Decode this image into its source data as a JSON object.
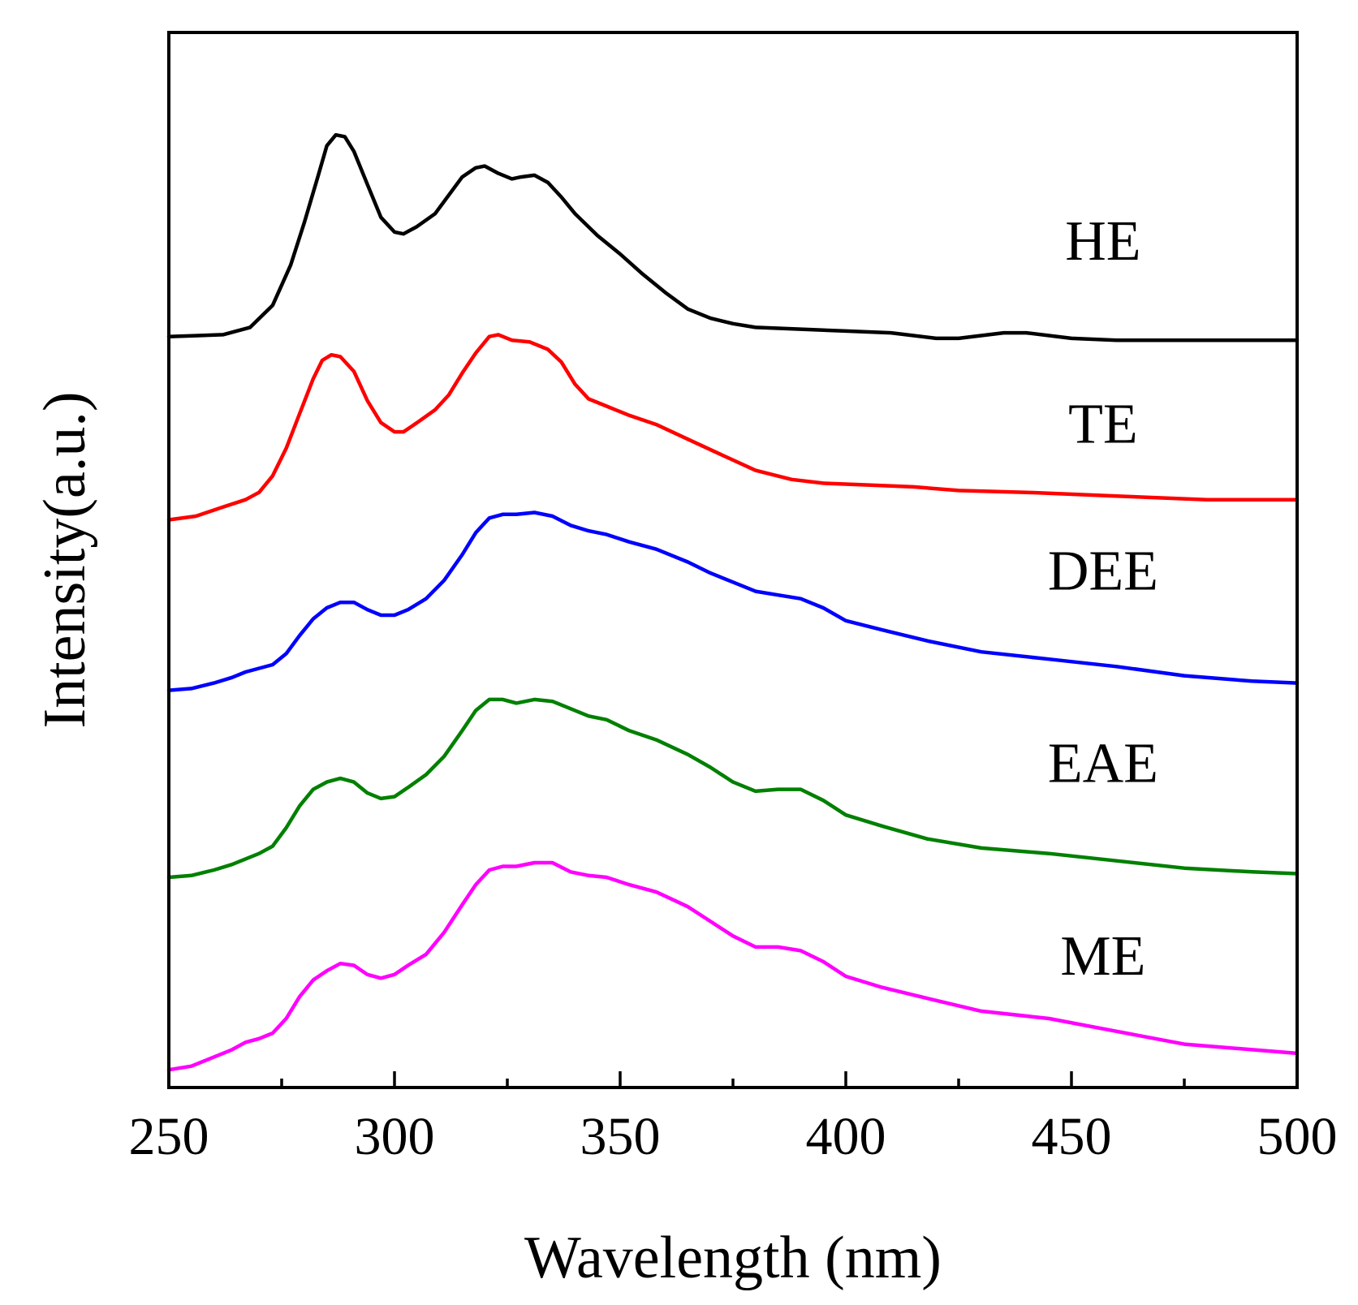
{
  "chart_data": {
    "type": "line",
    "title": "",
    "xlabel": "Wavelength (nm)",
    "ylabel": "Intensity(a.u.)",
    "xlim": [
      250,
      500
    ],
    "ylim": [
      0,
      5.6
    ],
    "y_ticks_shown": false,
    "x_ticks": [
      250,
      300,
      350,
      400,
      450,
      500
    ],
    "x_minor_ticks": [
      275,
      325,
      375,
      425,
      475
    ],
    "grid": false,
    "legend": "inline labels at right",
    "series": [
      {
        "name": "HE",
        "color": "#000000",
        "label_x": 457,
        "label_y": 4.45,
        "points": [
          [
            250,
            4.03
          ],
          [
            262,
            4.04
          ],
          [
            268,
            4.08
          ],
          [
            273,
            4.2
          ],
          [
            277,
            4.42
          ],
          [
            280,
            4.65
          ],
          [
            283,
            4.9
          ],
          [
            285,
            5.07
          ],
          [
            287,
            5.13
          ],
          [
            289,
            5.12
          ],
          [
            291,
            5.04
          ],
          [
            294,
            4.86
          ],
          [
            297,
            4.68
          ],
          [
            300,
            4.6
          ],
          [
            302,
            4.59
          ],
          [
            305,
            4.63
          ],
          [
            309,
            4.7
          ],
          [
            312,
            4.8
          ],
          [
            315,
            4.9
          ],
          [
            318,
            4.95
          ],
          [
            320,
            4.96
          ],
          [
            323,
            4.92
          ],
          [
            326,
            4.89
          ],
          [
            328,
            4.9
          ],
          [
            331,
            4.91
          ],
          [
            334,
            4.87
          ],
          [
            337,
            4.79
          ],
          [
            340,
            4.7
          ],
          [
            345,
            4.58
          ],
          [
            350,
            4.48
          ],
          [
            355,
            4.37
          ],
          [
            360,
            4.27
          ],
          [
            365,
            4.18
          ],
          [
            370,
            4.13
          ],
          [
            375,
            4.1
          ],
          [
            380,
            4.08
          ],
          [
            390,
            4.07
          ],
          [
            400,
            4.06
          ],
          [
            410,
            4.05
          ],
          [
            420,
            4.02
          ],
          [
            425,
            4.02
          ],
          [
            435,
            4.05
          ],
          [
            440,
            4.05
          ],
          [
            450,
            4.02
          ],
          [
            460,
            4.01
          ],
          [
            475,
            4.01
          ],
          [
            500,
            4.01
          ]
        ]
      },
      {
        "name": "TE",
        "color": "#ff0000",
        "label_x": 457,
        "label_y": 3.45,
        "points": [
          [
            250,
            3.03
          ],
          [
            256,
            3.05
          ],
          [
            262,
            3.1
          ],
          [
            267,
            3.14
          ],
          [
            270,
            3.18
          ],
          [
            273,
            3.27
          ],
          [
            276,
            3.42
          ],
          [
            279,
            3.61
          ],
          [
            282,
            3.8
          ],
          [
            284,
            3.9
          ],
          [
            286,
            3.93
          ],
          [
            288,
            3.92
          ],
          [
            291,
            3.84
          ],
          [
            294,
            3.68
          ],
          [
            297,
            3.56
          ],
          [
            300,
            3.51
          ],
          [
            302,
            3.51
          ],
          [
            305,
            3.56
          ],
          [
            309,
            3.63
          ],
          [
            312,
            3.71
          ],
          [
            315,
            3.83
          ],
          [
            318,
            3.94
          ],
          [
            321,
            4.03
          ],
          [
            323,
            4.04
          ],
          [
            326,
            4.01
          ],
          [
            330,
            4.0
          ],
          [
            334,
            3.96
          ],
          [
            337,
            3.89
          ],
          [
            340,
            3.77
          ],
          [
            343,
            3.69
          ],
          [
            347,
            3.65
          ],
          [
            352,
            3.6
          ],
          [
            358,
            3.55
          ],
          [
            365,
            3.47
          ],
          [
            372,
            3.39
          ],
          [
            380,
            3.3
          ],
          [
            388,
            3.25
          ],
          [
            395,
            3.23
          ],
          [
            405,
            3.22
          ],
          [
            415,
            3.21
          ],
          [
            425,
            3.19
          ],
          [
            440,
            3.18
          ],
          [
            460,
            3.16
          ],
          [
            480,
            3.14
          ],
          [
            500,
            3.14
          ]
        ]
      },
      {
        "name": "DEE",
        "color": "#0000ff",
        "label_x": 457,
        "label_y": 2.65,
        "points": [
          [
            250,
            2.1
          ],
          [
            255,
            2.11
          ],
          [
            260,
            2.14
          ],
          [
            264,
            2.17
          ],
          [
            267,
            2.2
          ],
          [
            270,
            2.22
          ],
          [
            273,
            2.24
          ],
          [
            276,
            2.3
          ],
          [
            279,
            2.4
          ],
          [
            282,
            2.49
          ],
          [
            285,
            2.55
          ],
          [
            288,
            2.58
          ],
          [
            291,
            2.58
          ],
          [
            294,
            2.54
          ],
          [
            297,
            2.51
          ],
          [
            300,
            2.51
          ],
          [
            303,
            2.54
          ],
          [
            307,
            2.6
          ],
          [
            311,
            2.7
          ],
          [
            315,
            2.84
          ],
          [
            318,
            2.96
          ],
          [
            321,
            3.04
          ],
          [
            324,
            3.06
          ],
          [
            327,
            3.06
          ],
          [
            331,
            3.07
          ],
          [
            335,
            3.05
          ],
          [
            339,
            3.0
          ],
          [
            343,
            2.97
          ],
          [
            347,
            2.95
          ],
          [
            352,
            2.91
          ],
          [
            358,
            2.87
          ],
          [
            365,
            2.8
          ],
          [
            370,
            2.74
          ],
          [
            375,
            2.69
          ],
          [
            380,
            2.64
          ],
          [
            385,
            2.62
          ],
          [
            390,
            2.6
          ],
          [
            395,
            2.55
          ],
          [
            400,
            2.48
          ],
          [
            408,
            2.43
          ],
          [
            418,
            2.37
          ],
          [
            430,
            2.31
          ],
          [
            445,
            2.27
          ],
          [
            460,
            2.23
          ],
          [
            475,
            2.18
          ],
          [
            490,
            2.15
          ],
          [
            500,
            2.14
          ]
        ]
      },
      {
        "name": "EAE",
        "color": "#008000",
        "label_x": 457,
        "label_y": 1.6,
        "points": [
          [
            250,
            1.08
          ],
          [
            255,
            1.09
          ],
          [
            260,
            1.12
          ],
          [
            264,
            1.15
          ],
          [
            267,
            1.18
          ],
          [
            270,
            1.21
          ],
          [
            273,
            1.25
          ],
          [
            276,
            1.35
          ],
          [
            279,
            1.47
          ],
          [
            282,
            1.56
          ],
          [
            285,
            1.6
          ],
          [
            288,
            1.62
          ],
          [
            291,
            1.6
          ],
          [
            294,
            1.54
          ],
          [
            297,
            1.51
          ],
          [
            300,
            1.52
          ],
          [
            303,
            1.57
          ],
          [
            307,
            1.64
          ],
          [
            311,
            1.74
          ],
          [
            315,
            1.88
          ],
          [
            318,
            1.99
          ],
          [
            321,
            2.05
          ],
          [
            324,
            2.05
          ],
          [
            327,
            2.03
          ],
          [
            331,
            2.05
          ],
          [
            335,
            2.04
          ],
          [
            339,
            2.0
          ],
          [
            343,
            1.96
          ],
          [
            347,
            1.94
          ],
          [
            352,
            1.88
          ],
          [
            358,
            1.83
          ],
          [
            365,
            1.75
          ],
          [
            370,
            1.68
          ],
          [
            375,
            1.6
          ],
          [
            380,
            1.55
          ],
          [
            385,
            1.56
          ],
          [
            390,
            1.56
          ],
          [
            395,
            1.5
          ],
          [
            400,
            1.42
          ],
          [
            408,
            1.36
          ],
          [
            418,
            1.29
          ],
          [
            430,
            1.24
          ],
          [
            445,
            1.21
          ],
          [
            460,
            1.17
          ],
          [
            475,
            1.13
          ],
          [
            490,
            1.11
          ],
          [
            500,
            1.1
          ]
        ]
      },
      {
        "name": "ME",
        "color": "#ff00ff",
        "label_x": 457,
        "label_y": 0.55,
        "points": [
          [
            250,
            0.03
          ],
          [
            255,
            0.05
          ],
          [
            260,
            0.1
          ],
          [
            264,
            0.14
          ],
          [
            267,
            0.18
          ],
          [
            270,
            0.2
          ],
          [
            273,
            0.23
          ],
          [
            276,
            0.31
          ],
          [
            279,
            0.43
          ],
          [
            282,
            0.52
          ],
          [
            285,
            0.57
          ],
          [
            288,
            0.61
          ],
          [
            291,
            0.6
          ],
          [
            294,
            0.55
          ],
          [
            297,
            0.53
          ],
          [
            300,
            0.55
          ],
          [
            303,
            0.6
          ],
          [
            307,
            0.66
          ],
          [
            311,
            0.78
          ],
          [
            315,
            0.93
          ],
          [
            318,
            1.04
          ],
          [
            321,
            1.12
          ],
          [
            324,
            1.14
          ],
          [
            327,
            1.14
          ],
          [
            331,
            1.16
          ],
          [
            335,
            1.16
          ],
          [
            339,
            1.11
          ],
          [
            343,
            1.09
          ],
          [
            347,
            1.08
          ],
          [
            352,
            1.04
          ],
          [
            358,
            1.0
          ],
          [
            365,
            0.92
          ],
          [
            370,
            0.84
          ],
          [
            375,
            0.76
          ],
          [
            380,
            0.7
          ],
          [
            385,
            0.7
          ],
          [
            390,
            0.68
          ],
          [
            395,
            0.62
          ],
          [
            400,
            0.54
          ],
          [
            408,
            0.48
          ],
          [
            418,
            0.42
          ],
          [
            430,
            0.35
          ],
          [
            445,
            0.31
          ],
          [
            460,
            0.24
          ],
          [
            475,
            0.17
          ],
          [
            490,
            0.14
          ],
          [
            500,
            0.12
          ]
        ]
      }
    ]
  }
}
